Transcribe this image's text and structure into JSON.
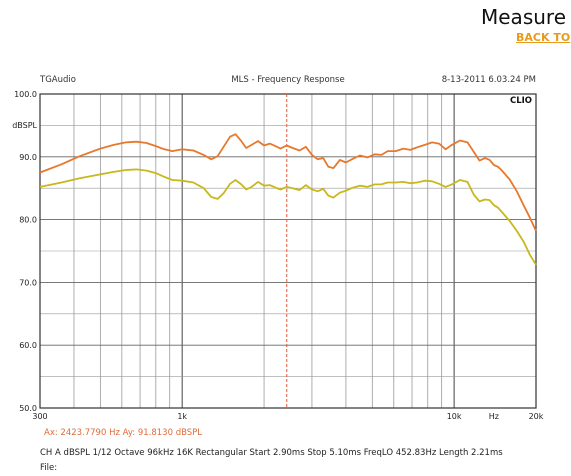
{
  "page": {
    "heading": "Measure",
    "back_link": "BACK TO"
  },
  "chart_data": {
    "type": "line",
    "header": {
      "left": "TGAudio",
      "center": "MLS - Frequency Response",
      "right": "8-13-2011 6.03.24 PM",
      "logo": "CLIO"
    },
    "ylabel": "dBSPL",
    "xlabel": "Hz",
    "xscale": "log",
    "xlim": [
      300,
      20000
    ],
    "ylim": [
      50,
      100
    ],
    "y_ticks": [
      {
        "value": 100,
        "label": "100.0"
      },
      {
        "value": 90,
        "label": "90.0"
      },
      {
        "value": 80,
        "label": "80.0"
      },
      {
        "value": 70,
        "label": "70.0"
      },
      {
        "value": 60,
        "label": "60.0"
      },
      {
        "value": 50,
        "label": "50.0"
      }
    ],
    "x_ticks": [
      {
        "value": 300,
        "label": "300"
      },
      {
        "value": 1000,
        "label": "1k"
      },
      {
        "value": 10000,
        "label": "10k"
      },
      {
        "value": 20000,
        "label": "20k"
      }
    ],
    "grid": true,
    "cursor": {
      "x": 2423.779,
      "color": "#e05a3a"
    },
    "readout": "Ax: 2423.7790 Hz   Ay: 91.8130 dBSPL",
    "settings_line": "CH A   dBSPL   1/12 Octave   96kHz   16K   Rectangular   Start 2.90ms   Stop 5.10ms   FreqLO 452.83Hz   Length 2.21ms",
    "file_label": "File:",
    "series": [
      {
        "color": "#e8782c",
        "x": [
          300,
          360,
          420,
          500,
          560,
          620,
          680,
          740,
          800,
          860,
          920,
          1000,
          1100,
          1200,
          1280,
          1350,
          1420,
          1500,
          1570,
          1650,
          1720,
          1800,
          1900,
          2000,
          2100,
          2200,
          2300,
          2420,
          2550,
          2700,
          2850,
          3000,
          3150,
          3300,
          3450,
          3600,
          3800,
          4000,
          4250,
          4500,
          4800,
          5100,
          5400,
          5700,
          6100,
          6500,
          6900,
          7300,
          7800,
          8300,
          8800,
          9300,
          9800,
          10500,
          11200,
          11800,
          12400,
          13000,
          13500,
          14000,
          14500,
          15000,
          16000,
          17000,
          18000,
          19000,
          20000
        ],
        "y": [
          87.5,
          88.8,
          90.1,
          91.3,
          91.9,
          92.3,
          92.4,
          92.2,
          91.7,
          91.2,
          90.9,
          91.2,
          91.0,
          90.3,
          89.6,
          90.1,
          91.6,
          93.2,
          93.6,
          92.5,
          91.4,
          91.9,
          92.5,
          91.8,
          92.1,
          91.7,
          91.3,
          91.8,
          91.4,
          91.0,
          91.6,
          90.3,
          89.6,
          89.8,
          88.4,
          88.2,
          89.5,
          89.1,
          89.7,
          90.2,
          89.9,
          90.4,
          90.3,
          90.9,
          90.9,
          91.3,
          91.1,
          91.5,
          91.9,
          92.3,
          92.1,
          91.2,
          91.9,
          92.6,
          92.3,
          90.8,
          89.4,
          89.8,
          89.5,
          88.7,
          88.4,
          87.8,
          86.4,
          84.5,
          82.3,
          80.3,
          78.2
        ]
      },
      {
        "color": "#c8b81c",
        "x": [
          300,
          360,
          420,
          500,
          560,
          620,
          680,
          740,
          800,
          860,
          920,
          1000,
          1100,
          1200,
          1280,
          1350,
          1420,
          1500,
          1570,
          1650,
          1720,
          1800,
          1900,
          2000,
          2100,
          2200,
          2300,
          2420,
          2550,
          2700,
          2850,
          3000,
          3150,
          3300,
          3450,
          3600,
          3800,
          4000,
          4250,
          4500,
          4800,
          5100,
          5400,
          5700,
          6100,
          6500,
          6900,
          7300,
          7800,
          8300,
          8800,
          9300,
          9800,
          10500,
          11200,
          11800,
          12400,
          13000,
          13500,
          14000,
          14500,
          15000,
          16000,
          17000,
          18000,
          19000,
          20000
        ],
        "y": [
          85.2,
          85.9,
          86.6,
          87.2,
          87.6,
          87.9,
          88.0,
          87.8,
          87.4,
          86.8,
          86.3,
          86.2,
          85.9,
          85.0,
          83.6,
          83.3,
          84.2,
          85.7,
          86.3,
          85.6,
          84.8,
          85.2,
          86.0,
          85.4,
          85.5,
          85.1,
          84.8,
          85.2,
          85.0,
          84.7,
          85.5,
          84.8,
          84.5,
          84.9,
          83.8,
          83.5,
          84.3,
          84.6,
          85.1,
          85.4,
          85.2,
          85.6,
          85.6,
          85.9,
          85.9,
          86.0,
          85.8,
          85.9,
          86.2,
          86.1,
          85.7,
          85.2,
          85.6,
          86.3,
          86.0,
          84.0,
          82.9,
          83.2,
          83.1,
          82.3,
          81.9,
          81.2,
          79.8,
          78.2,
          76.5,
          74.4,
          72.8
        ]
      }
    ]
  }
}
